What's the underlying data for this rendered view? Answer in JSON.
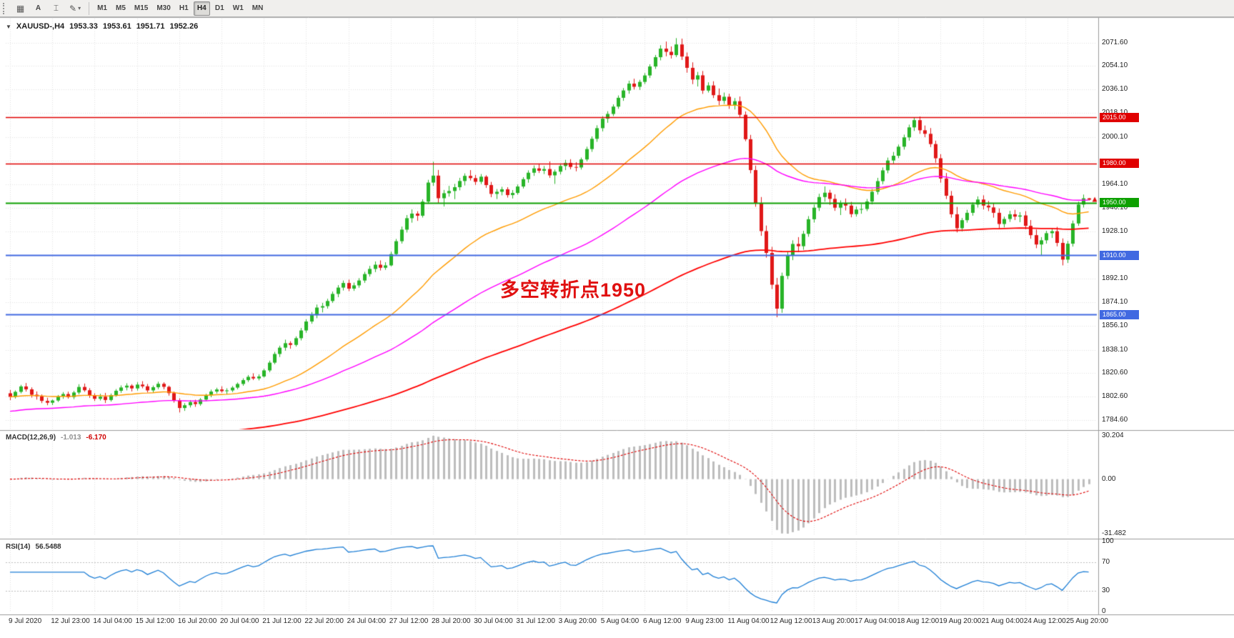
{
  "toolbar": {
    "buttons": [
      {
        "glyph": "▦"
      },
      {
        "glyph": "A"
      },
      {
        "glyph": "⌶"
      },
      {
        "glyph": "✎",
        "caret": "▾"
      }
    ],
    "timeframes": [
      "M1",
      "M5",
      "M15",
      "M30",
      "H1",
      "H4",
      "D1",
      "W1",
      "MN"
    ],
    "active_timeframe": "H4"
  },
  "header": {
    "collapse_glyph": "▼",
    "symbol": "XAUUSD-,H4",
    "open": "1953.33",
    "high": "1953.61",
    "low": "1951.71",
    "close": "1952.26"
  },
  "annotation": {
    "text": "多空转折点1950",
    "color": "#e01010"
  },
  "macd": {
    "label": "MACD(12,26,9)",
    "value": "-1.013",
    "signal_value": "-6.170",
    "scale_top": "30.204",
    "scale_zero": "0.00",
    "scale_bottom": "-31.482"
  },
  "rsi": {
    "label": "RSI(14)",
    "value": "56.5488",
    "levels": [
      100,
      70,
      30,
      0
    ]
  },
  "chart_data": {
    "type": "candlestick",
    "symbol": "XAUUSD",
    "timeframe": "H4",
    "colors": {
      "up": "#28b428",
      "down": "#e01818",
      "grid": "#e2e2e2"
    },
    "price_ticks": [
      2071.6,
      2054.1,
      2036.1,
      2018.1,
      2000.1,
      1982.1,
      1964.1,
      1946.1,
      1928.1,
      1910.1,
      1892.1,
      1874.1,
      1856.1,
      1838.1,
      1820.6,
      1802.6,
      1784.6
    ],
    "levels": [
      {
        "price": 2015.0,
        "label": "2015.00",
        "color": "#e00000",
        "width": 1.4
      },
      {
        "price": 1980.0,
        "label": "1980.00",
        "color": "#e00000",
        "width": 1.4
      },
      {
        "price": 1950.0,
        "label": "1950.00",
        "color": "#0da000",
        "width": 2
      },
      {
        "price": 1910.0,
        "label": "1910.00",
        "color": "#4169e1",
        "width": 2
      },
      {
        "price": 1865.0,
        "label": "1865.00",
        "color": "#4169e1",
        "width": 2
      }
    ],
    "mas": [
      {
        "name": "ma-fast",
        "period": 34,
        "color": "#ff9c00",
        "width": 1.4,
        "seed": null
      },
      {
        "name": "ma-mid",
        "period": 75,
        "color": "#ff00ff",
        "width": 1.4,
        "seed": 1791
      },
      {
        "name": "ma-slow",
        "period": 170,
        "color": "#ff0000",
        "width": 1.8,
        "seed": 1758
      }
    ],
    "macd_settings": {
      "fast": 12,
      "slow": 26,
      "signal": 9
    },
    "rsi_settings": {
      "period": 14,
      "upper_level": 70,
      "lower_level": 30
    },
    "last_price_marker": {
      "price": 1952.26,
      "color": "#e01010"
    },
    "time_labels": [
      "9 Jul 2020",
      "12 Jul 23:00",
      "14 Jul 04:00",
      "15 Jul 12:00",
      "16 Jul 20:00",
      "20 Jul 04:00",
      "21 Jul 12:00",
      "22 Jul 20:00",
      "24 Jul 04:00",
      "27 Jul 12:00",
      "28 Jul 20:00",
      "30 Jul 04:00",
      "31 Jul 12:00",
      "3 Aug 20:00",
      "5 Aug 04:00",
      "6 Aug 12:00",
      "9 Aug 23:00",
      "11 Aug 04:00",
      "12 Aug 12:00",
      "13 Aug 20:00",
      "17 Aug 04:00",
      "18 Aug 12:00",
      "19 Aug 20:00",
      "21 Aug 04:00",
      "24 Aug 12:00",
      "25 Aug 20:00"
    ],
    "candles": [
      [
        1805.0,
        1807.5,
        1799.8,
        1802.3
      ],
      [
        1802.3,
        1807.2,
        1801.0,
        1806.1
      ],
      [
        1806.1,
        1811.4,
        1804.9,
        1810.2
      ],
      [
        1810.2,
        1812.8,
        1806.3,
        1808.0
      ],
      [
        1808.0,
        1809.5,
        1801.7,
        1803.9
      ],
      [
        1803.9,
        1806.4,
        1800.2,
        1802.8
      ],
      [
        1802.8,
        1804.1,
        1797.5,
        1799.2
      ],
      [
        1799.2,
        1801.6,
        1795.9,
        1797.8
      ],
      [
        1797.8,
        1800.3,
        1796.0,
        1799.5
      ],
      [
        1799.5,
        1803.7,
        1798.4,
        1802.6
      ],
      [
        1802.6,
        1805.9,
        1800.8,
        1804.4
      ],
      [
        1804.4,
        1806.2,
        1800.9,
        1802.1
      ],
      [
        1802.1,
        1806.8,
        1800.5,
        1805.6
      ],
      [
        1805.6,
        1811.9,
        1804.2,
        1809.8
      ],
      [
        1809.8,
        1812.4,
        1806.1,
        1807.3
      ],
      [
        1807.3,
        1808.9,
        1801.5,
        1803.2
      ],
      [
        1803.2,
        1805.0,
        1799.1,
        1800.8
      ],
      [
        1800.8,
        1804.6,
        1799.5,
        1802.4
      ],
      [
        1802.4,
        1805.3,
        1797.6,
        1799.9
      ],
      [
        1799.9,
        1804.8,
        1798.7,
        1803.6
      ],
      [
        1803.6,
        1808.2,
        1802.4,
        1806.9
      ],
      [
        1806.9,
        1811.0,
        1805.3,
        1809.4
      ],
      [
        1809.4,
        1812.6,
        1807.2,
        1810.8
      ],
      [
        1810.8,
        1811.9,
        1806.4,
        1808.7
      ],
      [
        1808.7,
        1813.5,
        1807.0,
        1811.6
      ],
      [
        1811.6,
        1814.2,
        1808.8,
        1810.3
      ],
      [
        1810.3,
        1812.1,
        1805.6,
        1807.2
      ],
      [
        1807.2,
        1810.9,
        1805.8,
        1809.6
      ],
      [
        1809.6,
        1813.8,
        1808.1,
        1812.2
      ],
      [
        1812.2,
        1813.4,
        1808.0,
        1809.9
      ],
      [
        1809.9,
        1810.8,
        1803.2,
        1805.1
      ],
      [
        1805.1,
        1806.3,
        1797.9,
        1799.6
      ],
      [
        1799.6,
        1801.2,
        1790.4,
        1793.8
      ],
      [
        1793.8,
        1797.5,
        1791.6,
        1795.9
      ],
      [
        1795.9,
        1799.8,
        1794.2,
        1798.3
      ],
      [
        1798.3,
        1800.1,
        1794.7,
        1796.8
      ],
      [
        1796.8,
        1801.4,
        1795.5,
        1800.2
      ],
      [
        1800.2,
        1804.6,
        1799.1,
        1803.5
      ],
      [
        1803.5,
        1807.8,
        1802.0,
        1806.3
      ],
      [
        1806.3,
        1809.2,
        1804.8,
        1807.9
      ],
      [
        1807.9,
        1810.3,
        1805.4,
        1806.6
      ],
      [
        1806.6,
        1808.8,
        1804.1,
        1807.2
      ],
      [
        1807.2,
        1810.5,
        1805.9,
        1809.3
      ],
      [
        1809.3,
        1813.2,
        1808.0,
        1812.1
      ],
      [
        1812.1,
        1816.4,
        1810.7,
        1815.0
      ],
      [
        1815.0,
        1818.9,
        1813.6,
        1817.5
      ],
      [
        1817.5,
        1820.2,
        1815.1,
        1816.3
      ],
      [
        1816.3,
        1819.4,
        1814.8,
        1817.8
      ],
      [
        1817.8,
        1823.6,
        1816.9,
        1822.4
      ],
      [
        1822.4,
        1829.8,
        1821.0,
        1828.3
      ],
      [
        1828.3,
        1836.5,
        1827.1,
        1834.9
      ],
      [
        1834.9,
        1841.2,
        1832.6,
        1839.7
      ],
      [
        1839.7,
        1845.8,
        1837.4,
        1843.1
      ],
      [
        1843.1,
        1844.6,
        1838.9,
        1841.8
      ],
      [
        1841.8,
        1848.3,
        1840.5,
        1846.9
      ],
      [
        1846.9,
        1854.7,
        1845.2,
        1852.8
      ],
      [
        1852.8,
        1861.3,
        1851.0,
        1859.6
      ],
      [
        1859.6,
        1866.8,
        1857.9,
        1864.4
      ],
      [
        1864.4,
        1872.5,
        1862.1,
        1870.2
      ],
      [
        1870.2,
        1873.8,
        1866.5,
        1871.3
      ],
      [
        1871.3,
        1876.9,
        1869.4,
        1875.2
      ],
      [
        1875.2,
        1882.4,
        1873.8,
        1880.6
      ],
      [
        1880.6,
        1887.3,
        1878.1,
        1885.4
      ],
      [
        1885.4,
        1890.8,
        1883.2,
        1888.9
      ],
      [
        1888.9,
        1891.5,
        1882.7,
        1884.6
      ],
      [
        1884.6,
        1889.2,
        1882.9,
        1887.1
      ],
      [
        1887.1,
        1892.6,
        1885.3,
        1890.8
      ],
      [
        1890.8,
        1897.4,
        1889.0,
        1895.7
      ],
      [
        1895.7,
        1901.9,
        1893.8,
        1899.6
      ],
      [
        1899.6,
        1905.3,
        1897.2,
        1902.8
      ],
      [
        1902.8,
        1906.1,
        1898.4,
        1900.5
      ],
      [
        1900.5,
        1904.7,
        1898.9,
        1902.3
      ],
      [
        1902.3,
        1912.8,
        1901.5,
        1910.9
      ],
      [
        1910.9,
        1922.4,
        1909.6,
        1920.7
      ],
      [
        1920.7,
        1931.8,
        1918.9,
        1929.5
      ],
      [
        1929.5,
        1940.6,
        1927.3,
        1938.2
      ],
      [
        1938.2,
        1944.9,
        1934.8,
        1941.7
      ],
      [
        1941.7,
        1943.5,
        1936.2,
        1940.1
      ],
      [
        1940.1,
        1952.6,
        1938.7,
        1950.8
      ],
      [
        1950.8,
        1967.4,
        1949.2,
        1965.3
      ],
      [
        1965.3,
        1981.2,
        1962.8,
        1970.6
      ],
      [
        1970.6,
        1974.9,
        1949.8,
        1953.4
      ],
      [
        1953.4,
        1959.7,
        1947.1,
        1957.2
      ],
      [
        1957.2,
        1962.8,
        1954.6,
        1958.9
      ],
      [
        1958.9,
        1964.3,
        1952.7,
        1961.8
      ],
      [
        1961.8,
        1968.9,
        1959.4,
        1966.5
      ],
      [
        1966.5,
        1972.3,
        1963.1,
        1970.4
      ],
      [
        1970.4,
        1974.8,
        1966.9,
        1968.7
      ],
      [
        1968.7,
        1971.2,
        1963.5,
        1965.9
      ],
      [
        1965.9,
        1971.8,
        1964.2,
        1969.8
      ],
      [
        1969.8,
        1970.9,
        1961.3,
        1963.4
      ],
      [
        1963.4,
        1965.8,
        1954.2,
        1956.7
      ],
      [
        1956.7,
        1960.4,
        1952.8,
        1958.3
      ],
      [
        1958.3,
        1962.1,
        1955.6,
        1960.2
      ],
      [
        1960.2,
        1961.8,
        1953.9,
        1955.8
      ],
      [
        1955.8,
        1959.6,
        1953.2,
        1957.4
      ],
      [
        1957.4,
        1963.8,
        1956.1,
        1962.3
      ],
      [
        1962.3,
        1969.4,
        1960.8,
        1967.9
      ],
      [
        1967.9,
        1974.6,
        1965.2,
        1972.8
      ],
      [
        1972.8,
        1978.3,
        1970.4,
        1976.1
      ],
      [
        1976.1,
        1979.8,
        1972.6,
        1974.3
      ],
      [
        1974.3,
        1977.9,
        1971.8,
        1975.6
      ],
      [
        1975.6,
        1981.4,
        1968.9,
        1970.8
      ],
      [
        1970.8,
        1975.2,
        1964.3,
        1973.6
      ],
      [
        1973.6,
        1979.8,
        1971.5,
        1977.9
      ],
      [
        1977.9,
        1982.6,
        1974.8,
        1980.3
      ],
      [
        1980.3,
        1983.1,
        1975.4,
        1977.2
      ],
      [
        1977.2,
        1980.8,
        1973.9,
        1976.8
      ],
      [
        1976.8,
        1984.3,
        1975.2,
        1982.9
      ],
      [
        1982.9,
        1992.6,
        1981.4,
        1990.8
      ],
      [
        1990.8,
        2000.4,
        1988.7,
        1998.6
      ],
      [
        1998.6,
        2008.9,
        1996.3,
        2006.7
      ],
      [
        2006.7,
        2015.8,
        2004.2,
        2013.9
      ],
      [
        2013.9,
        2019.6,
        2010.8,
        2017.5
      ],
      [
        2017.5,
        2024.8,
        2015.9,
        2023.1
      ],
      [
        2023.1,
        2031.6,
        2021.4,
        2029.8
      ],
      [
        2029.8,
        2037.2,
        2027.5,
        2035.4
      ],
      [
        2035.4,
        2042.8,
        2032.9,
        2040.6
      ],
      [
        2040.6,
        2044.3,
        2036.1,
        2038.2
      ],
      [
        2038.2,
        2043.5,
        2035.8,
        2041.9
      ],
      [
        2041.9,
        2048.6,
        2040.2,
        2046.8
      ],
      [
        2046.8,
        2055.3,
        2044.9,
        2053.6
      ],
      [
        2053.6,
        2062.4,
        2051.8,
        2060.7
      ],
      [
        2060.7,
        2069.8,
        2058.3,
        2067.2
      ],
      [
        2067.2,
        2072.6,
        2061.4,
        2064.8
      ],
      [
        2064.8,
        2068.9,
        2059.7,
        2062.3
      ],
      [
        2062.3,
        2075.2,
        2060.8,
        2070.4
      ],
      [
        2070.4,
        2074.8,
        2058.6,
        2061.2
      ],
      [
        2061.2,
        2064.3,
        2048.9,
        2052.6
      ],
      [
        2052.6,
        2056.8,
        2040.2,
        2043.7
      ],
      [
        2043.7,
        2049.5,
        2038.4,
        2046.9
      ],
      [
        2046.9,
        2050.2,
        2032.8,
        2035.3
      ],
      [
        2035.3,
        2041.6,
        2033.8,
        2039.2
      ],
      [
        2039.2,
        2042.4,
        2029.6,
        2031.8
      ],
      [
        2031.8,
        2036.9,
        2024.3,
        2027.5
      ],
      [
        2027.5,
        2033.8,
        2025.1,
        2030.6
      ],
      [
        2030.6,
        2032.9,
        2021.4,
        2023.8
      ],
      [
        2023.8,
        2029.6,
        2020.9,
        2027.2
      ],
      [
        2027.2,
        2030.8,
        2014.6,
        2016.9
      ],
      [
        2016.9,
        2019.4,
        1996.8,
        1998.3
      ],
      [
        1998.3,
        2001.6,
        1972.4,
        1974.8
      ],
      [
        1974.8,
        1978.2,
        1946.9,
        1949.6
      ],
      [
        1949.6,
        1954.3,
        1924.8,
        1928.4
      ],
      [
        1928.4,
        1932.6,
        1908.2,
        1911.8
      ],
      [
        1911.8,
        1916.4,
        1884.3,
        1887.6
      ],
      [
        1887.6,
        1892.8,
        1862.9,
        1869.4
      ],
      [
        1869.4,
        1896.8,
        1866.2,
        1894.3
      ],
      [
        1894.3,
        1912.6,
        1891.8,
        1909.7
      ],
      [
        1909.7,
        1921.4,
        1906.3,
        1918.6
      ],
      [
        1918.6,
        1923.8,
        1912.4,
        1916.9
      ],
      [
        1916.9,
        1928.6,
        1914.2,
        1926.3
      ],
      [
        1926.3,
        1939.8,
        1924.1,
        1937.4
      ],
      [
        1937.4,
        1948.6,
        1934.9,
        1946.2
      ],
      [
        1946.2,
        1956.8,
        1943.7,
        1954.3
      ],
      [
        1954.3,
        1962.4,
        1950.8,
        1957.6
      ],
      [
        1957.6,
        1959.8,
        1948.3,
        1952.9
      ],
      [
        1952.9,
        1956.4,
        1943.8,
        1946.2
      ],
      [
        1946.2,
        1951.8,
        1940.6,
        1949.4
      ],
      [
        1949.4,
        1953.2,
        1944.1,
        1947.8
      ],
      [
        1947.8,
        1950.6,
        1938.9,
        1941.3
      ],
      [
        1941.3,
        1947.2,
        1939.4,
        1944.8
      ],
      [
        1944.8,
        1948.9,
        1941.6,
        1945.2
      ],
      [
        1945.2,
        1952.8,
        1943.6,
        1950.9
      ],
      [
        1950.9,
        1960.4,
        1948.7,
        1958.3
      ],
      [
        1958.3,
        1968.9,
        1956.2,
        1966.4
      ],
      [
        1966.4,
        1976.8,
        1964.1,
        1974.6
      ],
      [
        1974.6,
        1984.3,
        1972.4,
        1982.1
      ],
      [
        1982.1,
        1988.6,
        1979.8,
        1985.7
      ],
      [
        1985.7,
        1994.3,
        1983.9,
        1992.6
      ],
      [
        1992.6,
        2001.8,
        1990.4,
        1999.7
      ],
      [
        1999.7,
        2009.4,
        1997.2,
        2007.3
      ],
      [
        2007.3,
        2014.9,
        2004.6,
        2012.8
      ],
      [
        2012.8,
        2015.6,
        2002.4,
        2005.1
      ],
      [
        2005.1,
        2008.7,
        1999.8,
        2002.4
      ],
      [
        2002.4,
        2006.8,
        1992.3,
        1994.6
      ],
      [
        1994.6,
        1997.2,
        1980.4,
        1983.8
      ],
      [
        1983.8,
        1986.9,
        1965.2,
        1968.4
      ],
      [
        1968.4,
        1972.6,
        1952.8,
        1955.3
      ],
      [
        1955.3,
        1958.9,
        1938.6,
        1941.2
      ],
      [
        1941.2,
        1946.8,
        1927.4,
        1930.6
      ],
      [
        1930.6,
        1938.4,
        1928.2,
        1936.7
      ],
      [
        1936.7,
        1944.6,
        1934.8,
        1942.3
      ],
      [
        1942.3,
        1950.2,
        1940.1,
        1948.6
      ],
      [
        1948.6,
        1954.8,
        1946.3,
        1952.4
      ],
      [
        1952.4,
        1955.6,
        1944.9,
        1947.8
      ],
      [
        1947.8,
        1951.3,
        1943.6,
        1946.4
      ],
      [
        1946.4,
        1949.8,
        1938.6,
        1942.3
      ],
      [
        1942.3,
        1945.6,
        1930.4,
        1933.8
      ],
      [
        1933.8,
        1939.4,
        1931.2,
        1937.6
      ],
      [
        1937.6,
        1943.8,
        1935.4,
        1941.2
      ],
      [
        1941.2,
        1944.6,
        1936.8,
        1939.4
      ],
      [
        1939.4,
        1942.8,
        1935.2,
        1940.3
      ],
      [
        1940.3,
        1943.6,
        1929.8,
        1932.4
      ],
      [
        1932.4,
        1936.8,
        1922.6,
        1925.3
      ],
      [
        1925.3,
        1929.6,
        1915.4,
        1918.2
      ],
      [
        1918.2,
        1923.8,
        1909.6,
        1921.4
      ],
      [
        1921.4,
        1928.6,
        1918.9,
        1926.8
      ],
      [
        1926.8,
        1930.4,
        1923.2,
        1928.3
      ],
      [
        1928.3,
        1931.6,
        1916.8,
        1919.4
      ],
      [
        1919.4,
        1922.8,
        1902.3,
        1906.7
      ],
      [
        1906.7,
        1920.9,
        1904.2,
        1918.8
      ],
      [
        1918.8,
        1936.4,
        1916.6,
        1934.2
      ],
      [
        1934.2,
        1950.8,
        1932.4,
        1948.6
      ],
      [
        1948.6,
        1956.2,
        1946.3,
        1953.33
      ],
      [
        1953.33,
        1953.61,
        1951.71,
        1952.26
      ]
    ]
  }
}
